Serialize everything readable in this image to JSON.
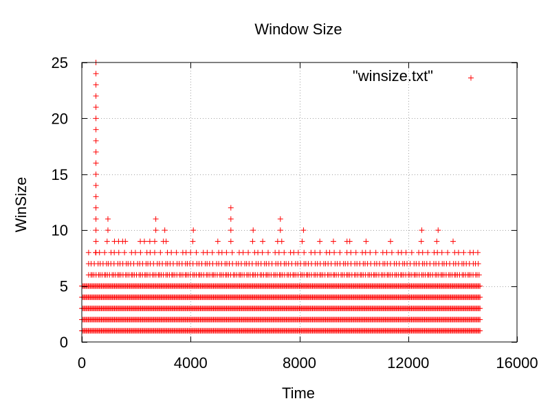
{
  "chart_data": {
    "type": "scatter",
    "title": "Window Size",
    "xlabel": "Time",
    "ylabel": "WinSize",
    "xlim": [
      0,
      16000
    ],
    "ylim": [
      0,
      25
    ],
    "xticks": [
      0,
      4000,
      8000,
      12000,
      16000
    ],
    "yticks": [
      0,
      5,
      10,
      15,
      20,
      25
    ],
    "grid": true,
    "legend_position": "top-right",
    "marker": "+",
    "series": [
      {
        "name": "\"winsize.txt\"",
        "color": "#ff0000",
        "dense_bands": {
          "x_start": 0,
          "x_end": 14650,
          "y_values": [
            1,
            2,
            3,
            4,
            5
          ]
        },
        "sparse_levels": {
          "x_start": 250,
          "x_end": 14650,
          "level_6_spacing": 75,
          "level_7_spacing": 110,
          "level_8_spacing": 200
        },
        "points": [
          {
            "x": 520,
            "y": 25
          },
          {
            "x": 520,
            "y": 24
          },
          {
            "x": 520,
            "y": 23
          },
          {
            "x": 520,
            "y": 22
          },
          {
            "x": 520,
            "y": 21
          },
          {
            "x": 520,
            "y": 20
          },
          {
            "x": 520,
            "y": 19
          },
          {
            "x": 520,
            "y": 18
          },
          {
            "x": 520,
            "y": 17
          },
          {
            "x": 520,
            "y": 16
          },
          {
            "x": 520,
            "y": 15
          },
          {
            "x": 520,
            "y": 14
          },
          {
            "x": 520,
            "y": 13
          },
          {
            "x": 520,
            "y": 12
          },
          {
            "x": 520,
            "y": 11
          },
          {
            "x": 520,
            "y": 10
          },
          {
            "x": 520,
            "y": 9
          },
          {
            "x": 520,
            "y": 8
          },
          {
            "x": 960,
            "y": 11
          },
          {
            "x": 960,
            "y": 10
          },
          {
            "x": 930,
            "y": 9
          },
          {
            "x": 1200,
            "y": 9
          },
          {
            "x": 1350,
            "y": 9
          },
          {
            "x": 1500,
            "y": 9
          },
          {
            "x": 1600,
            "y": 9
          },
          {
            "x": 2150,
            "y": 9
          },
          {
            "x": 2300,
            "y": 9
          },
          {
            "x": 2500,
            "y": 9
          },
          {
            "x": 2720,
            "y": 11
          },
          {
            "x": 2720,
            "y": 10
          },
          {
            "x": 2680,
            "y": 9
          },
          {
            "x": 3050,
            "y": 10
          },
          {
            "x": 3000,
            "y": 9
          },
          {
            "x": 3100,
            "y": 9
          },
          {
            "x": 4100,
            "y": 10
          },
          {
            "x": 4080,
            "y": 9
          },
          {
            "x": 5000,
            "y": 9
          },
          {
            "x": 5480,
            "y": 12
          },
          {
            "x": 5480,
            "y": 11
          },
          {
            "x": 5480,
            "y": 10
          },
          {
            "x": 5480,
            "y": 9
          },
          {
            "x": 6300,
            "y": 10
          },
          {
            "x": 6280,
            "y": 9
          },
          {
            "x": 6650,
            "y": 9
          },
          {
            "x": 7300,
            "y": 11
          },
          {
            "x": 7300,
            "y": 10
          },
          {
            "x": 7200,
            "y": 9
          },
          {
            "x": 7350,
            "y": 9
          },
          {
            "x": 8150,
            "y": 10
          },
          {
            "x": 8100,
            "y": 9
          },
          {
            "x": 8750,
            "y": 9
          },
          {
            "x": 9250,
            "y": 9
          },
          {
            "x": 9750,
            "y": 9
          },
          {
            "x": 9850,
            "y": 9
          },
          {
            "x": 10450,
            "y": 9
          },
          {
            "x": 11350,
            "y": 9
          },
          {
            "x": 12500,
            "y": 10
          },
          {
            "x": 12480,
            "y": 9
          },
          {
            "x": 13100,
            "y": 10
          },
          {
            "x": 13050,
            "y": 9
          },
          {
            "x": 13650,
            "y": 9
          }
        ]
      }
    ]
  }
}
